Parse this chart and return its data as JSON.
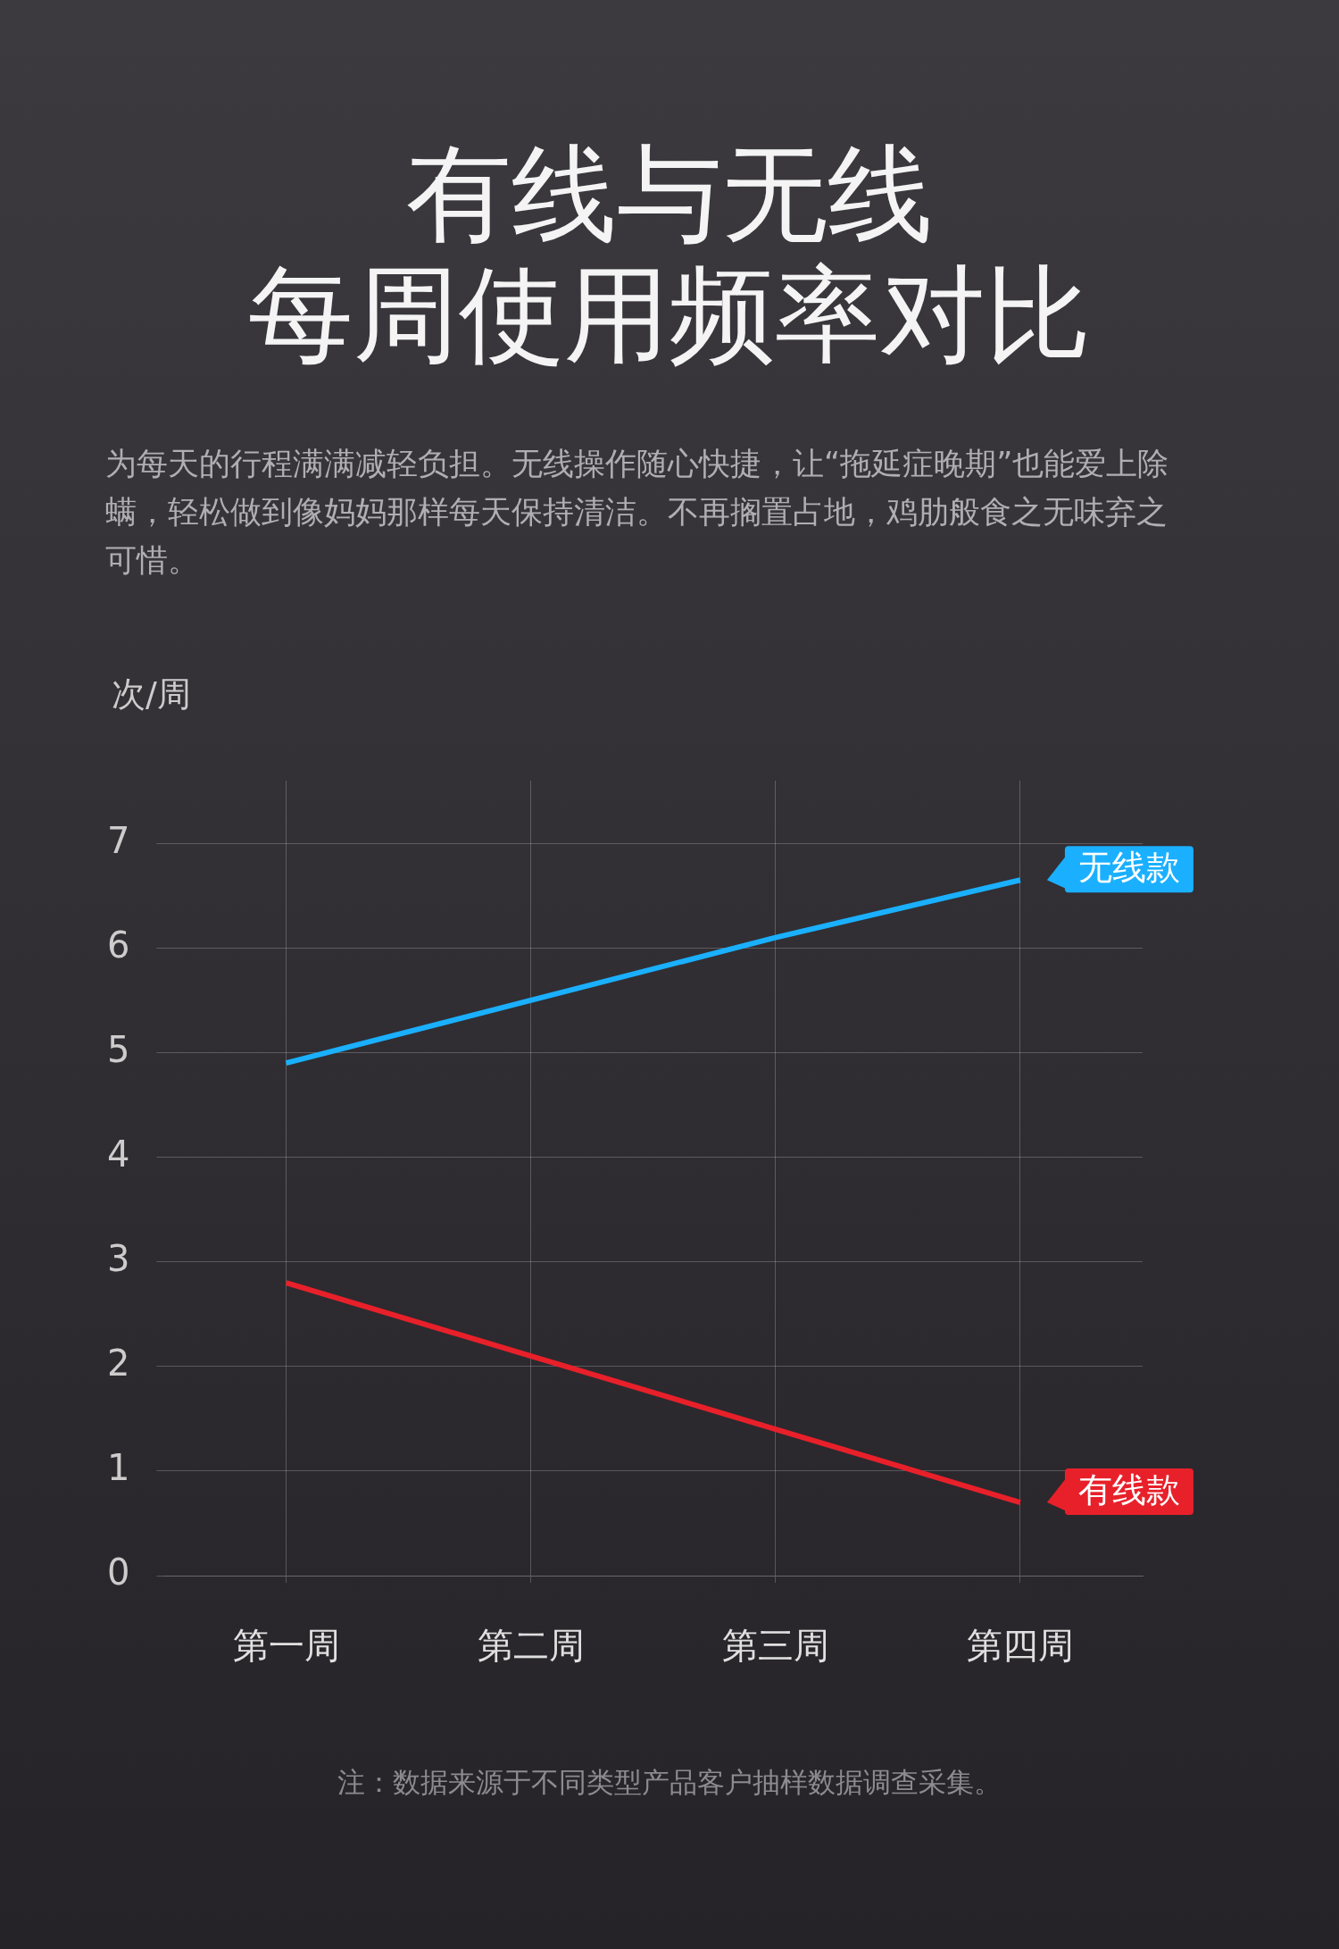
{
  "chart_data": {
    "type": "line",
    "title": "有线与无线",
    "subtitle": "每周使用频率对比",
    "ylabel": "次/周",
    "categories": [
      "第一周",
      "第二周",
      "第三周",
      "第四周"
    ],
    "series": [
      {
        "name": "无线款",
        "color": "#1ab0ff",
        "values": [
          4.9,
          5.5,
          6.1,
          6.65
        ]
      },
      {
        "name": "有线款",
        "color": "#e8202a",
        "values": [
          2.8,
          2.1,
          1.4,
          0.7
        ]
      }
    ],
    "ylim": [
      0,
      7.6
    ],
    "yticks": [
      0,
      1,
      2,
      3,
      4,
      5,
      6,
      7
    ],
    "grid": true,
    "legend": "right",
    "marker": "none",
    "line_style": "solid",
    "annotations": [
      "为每天的行程满满减轻负担。无线操作随心快捷，让“拖延症晚期”也能爱上除螨，轻松做到像妈妈那样每天保持清洁。不再搁置占地，鸡肋般食之无味弃之可惜。",
      "注：数据来源于不同类型产品客户抽样数据调查采集。"
    ]
  }
}
